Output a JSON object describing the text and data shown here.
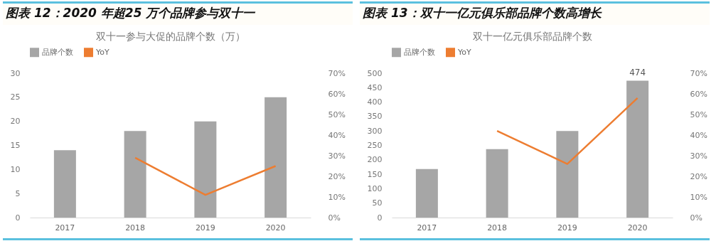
{
  "chart_data": [
    {
      "type": "bar",
      "title": "图表 12：2020 年超25 万个品牌参与双十一",
      "subtitle": "双十一参与大促的品牌个数（万）",
      "categories": [
        "2017",
        "2018",
        "2019",
        "2020"
      ],
      "series": [
        {
          "name": "品牌个数",
          "color": "#a6a6a6",
          "values": [
            14,
            18,
            20,
            25
          ]
        },
        {
          "name": "YoY",
          "type": "line",
          "axis": "y2",
          "color": "#ed7d31",
          "values": [
            null,
            29,
            11,
            25
          ]
        }
      ],
      "ylim": [
        0,
        30
      ],
      "yticks": [
        0,
        5,
        10,
        15,
        20,
        25,
        30
      ],
      "y2lim": [
        0,
        70
      ],
      "y2ticks": [
        {
          "value": 0,
          "label": "0%"
        },
        {
          "value": 10,
          "label": "10%"
        },
        {
          "value": 20,
          "label": "20%"
        },
        {
          "value": 30,
          "label": "30%"
        },
        {
          "value": 40,
          "label": "40%"
        },
        {
          "value": 50,
          "label": "50%"
        },
        {
          "value": 60,
          "label": "60%"
        },
        {
          "value": 70,
          "label": "70%"
        }
      ],
      "legend": "top",
      "marker": "none"
    },
    {
      "type": "bar",
      "title": "图表 13：双十一亿元俱乐部品牌个数高增长",
      "subtitle": "双十一亿元俱乐部品牌个数",
      "categories": [
        "2017",
        "2018",
        "2019",
        "2020"
      ],
      "series": [
        {
          "name": "品牌个数",
          "color": "#a6a6a6",
          "values": [
            168,
            237,
            300,
            474
          ],
          "value_labels": [
            null,
            null,
            null,
            "474"
          ]
        },
        {
          "name": "YoY",
          "type": "line",
          "axis": "y2",
          "color": "#ed7d31",
          "values": [
            null,
            42,
            26,
            58
          ]
        }
      ],
      "ylim": [
        0,
        500
      ],
      "yticks": [
        0,
        50,
        100,
        150,
        200,
        250,
        300,
        350,
        400,
        450,
        500
      ],
      "y2lim": [
        0,
        70
      ],
      "y2ticks": [
        {
          "value": 0,
          "label": "0%"
        },
        {
          "value": 10,
          "label": "10%"
        },
        {
          "value": 20,
          "label": "20%"
        },
        {
          "value": 30,
          "label": "30%"
        },
        {
          "value": 40,
          "label": "40%"
        },
        {
          "value": 50,
          "label": "50%"
        },
        {
          "value": 60,
          "label": "60%"
        },
        {
          "value": 70,
          "label": "70%"
        }
      ],
      "legend": "top",
      "marker": "none"
    }
  ]
}
